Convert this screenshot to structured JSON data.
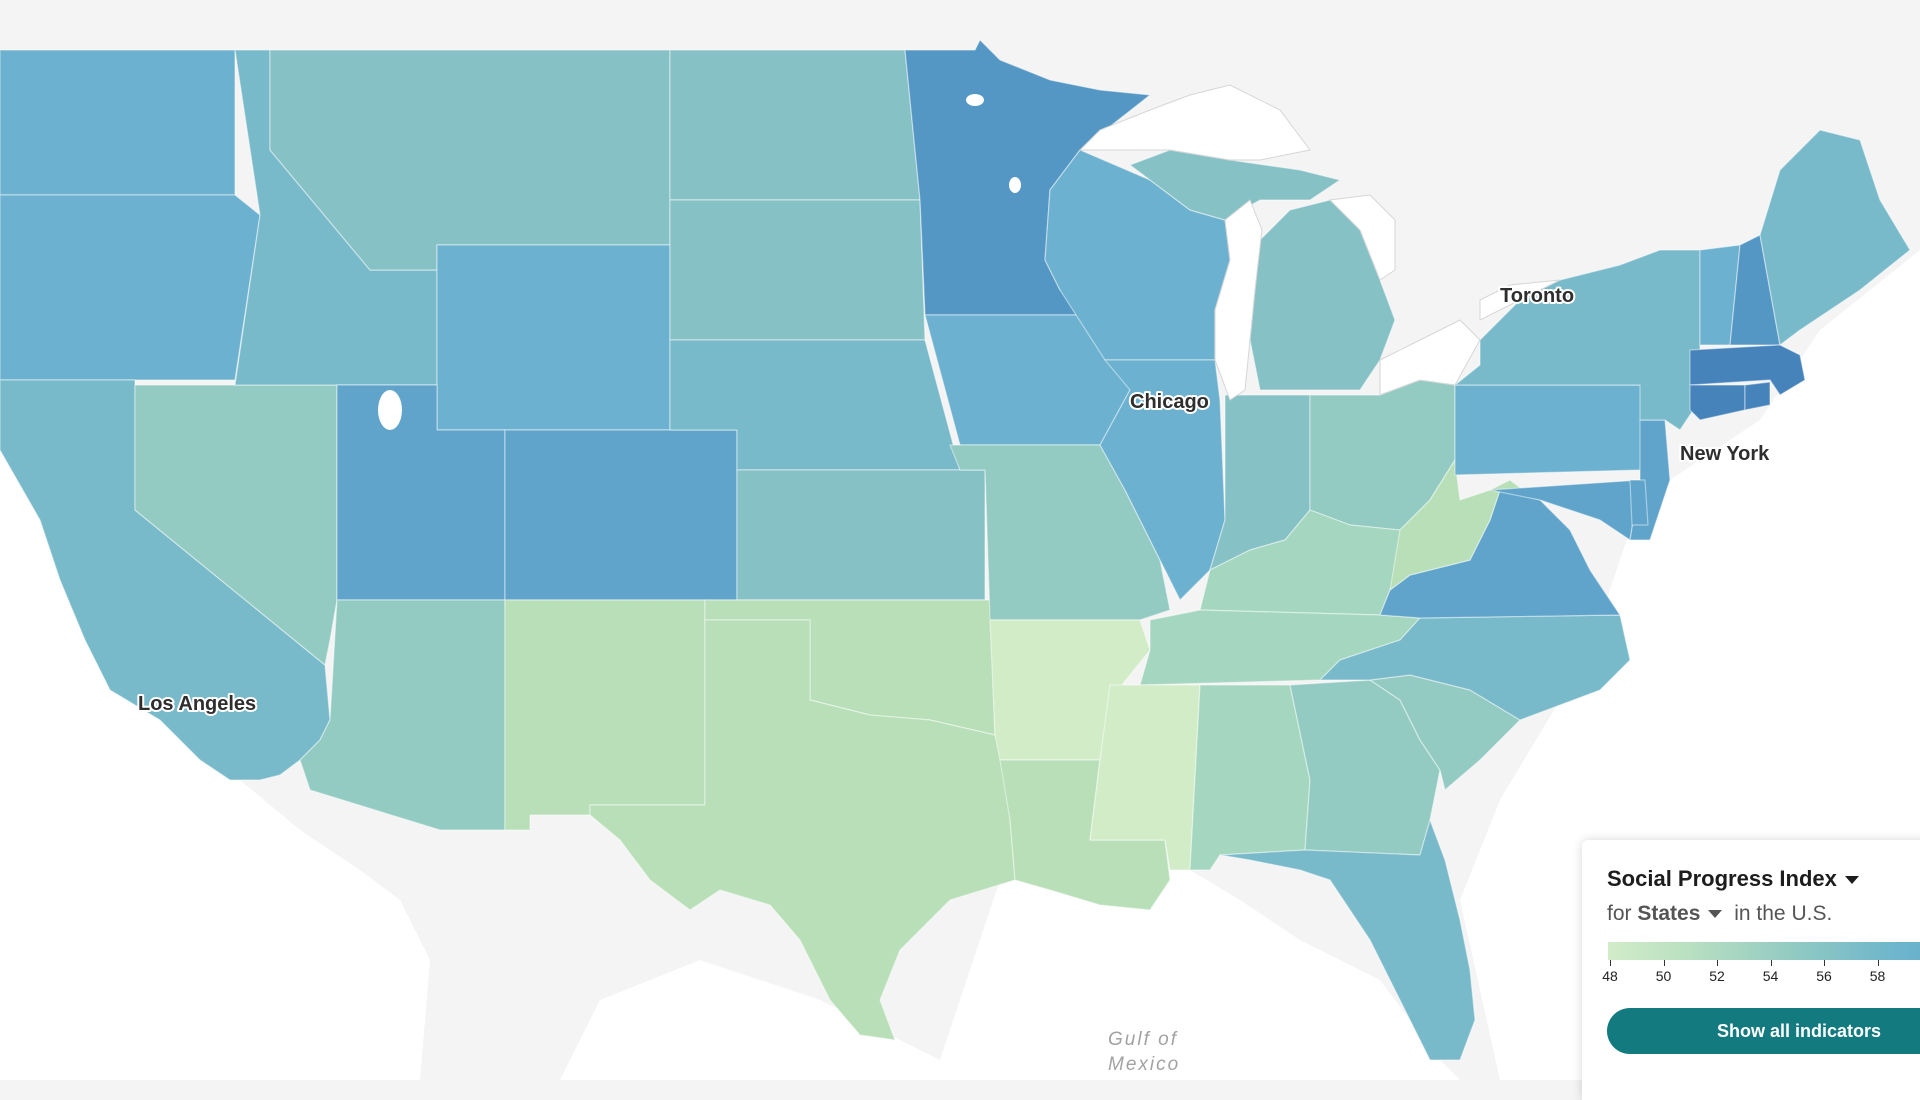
{
  "map": {
    "cities": {
      "los_angeles": "Los Angeles",
      "chicago": "Chicago",
      "toronto": "Toronto",
      "new_york": "New York"
    },
    "water": {
      "gulf_line1": "Gulf of",
      "gulf_line2": "Mexico"
    },
    "colors": {
      "land": "#f4f4f4",
      "water": "#ffffff",
      "c1": "#d2ecc8",
      "c2": "#b8dfb8",
      "c3": "#a5d6bf",
      "c4": "#93cbc3",
      "c5": "#86c1c6",
      "c6": "#78b9ca",
      "c7": "#6cb1cf",
      "c8": "#60a4cb",
      "c9": "#5497c5",
      "c10": "#4683bb"
    }
  },
  "legend": {
    "title": "Social Progress Index",
    "subtitle_prefix": "for",
    "subtitle_geo": "States",
    "subtitle_suffix": "in the U.S.",
    "ticks": [
      "48",
      "50",
      "52",
      "54",
      "56",
      "58"
    ],
    "button": "Show all indicators"
  }
}
